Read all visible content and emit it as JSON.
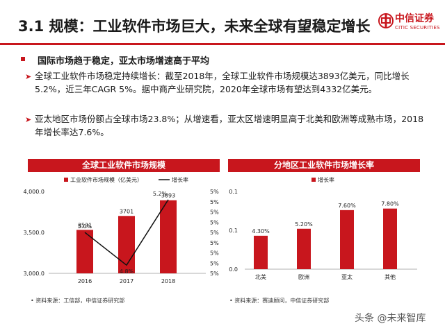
{
  "header": {
    "title": "3.1 规模：工业软件市场巨大，未来全球有望稳定增长",
    "logo_cn": "中信证券",
    "logo_en": "CITIC SECURITIES",
    "accent_color": "#c8161d"
  },
  "bullets": {
    "main": "国际市场趋于稳定，亚太市场增速高于平均",
    "sub1": "全球工业软件市场稳定持续增长：截至2018年，全球工业软件市场规模达3893亿美元，同比增长5.2%，近三年CAGR 5%。据中商产业研究院，2020年全球市场有望达到4332亿美元。",
    "sub2": "亚太地区市场份额占全球市场23.8%；从增速看，亚太区增速明显高于北美和欧洲等成熟市场，2018年增长率达7.6%。",
    "arrow_icon": "chevron-right-icon"
  },
  "panels": {
    "left_title": "全球工业软件市场规模",
    "right_title": "分地区工业软件市场增长率",
    "left_source": "资料来源：工信部，中信证券研究部",
    "right_source": "资料来源：赛迪顾问，中信证券研究部"
  },
  "chart_data": [
    {
      "type": "bar",
      "categories": [
        "2016",
        "2017",
        "2018"
      ],
      "series": [
        {
          "name": "工业软件市场规模（亿美元）",
          "kind": "bar",
          "values": [
            3531,
            3701,
            3893
          ],
          "labels": [
            "3531",
            "3701",
            "3893"
          ],
          "color": "#c8161d"
        },
        {
          "name": "增长率",
          "kind": "line",
          "axis": "right",
          "values": [
            5.0,
            4.8,
            5.2
          ],
          "labels": [
            "5.0%",
            "4.8%",
            "5.2%"
          ],
          "color": "#111111"
        }
      ],
      "yticks": [
        "3,000.0",
        "3,500.0",
        "4,000.0"
      ],
      "ylim": [
        3000,
        4000
      ],
      "y2ticks": [
        "5%",
        "5%",
        "5%",
        "5%",
        "5%",
        "5%",
        "5%",
        "5%",
        "5%"
      ],
      "y2lim": [
        4.75,
        5.25
      ],
      "legend": "top"
    },
    {
      "type": "bar",
      "categories": [
        "北美",
        "欧洲",
        "亚太",
        "其他"
      ],
      "series": [
        {
          "name": "增长率",
          "values": [
            4.3,
            5.2,
            7.6,
            7.8
          ],
          "labels": [
            "4.30%",
            "5.20%",
            "7.60%",
            "7.80%"
          ],
          "color": "#c8161d"
        }
      ],
      "yticks": [
        "0.0",
        "0.1",
        "0.1"
      ],
      "ylim": [
        0,
        10
      ],
      "legend": "top"
    }
  ],
  "footer": {
    "watermark": "头条 @未来智库"
  }
}
